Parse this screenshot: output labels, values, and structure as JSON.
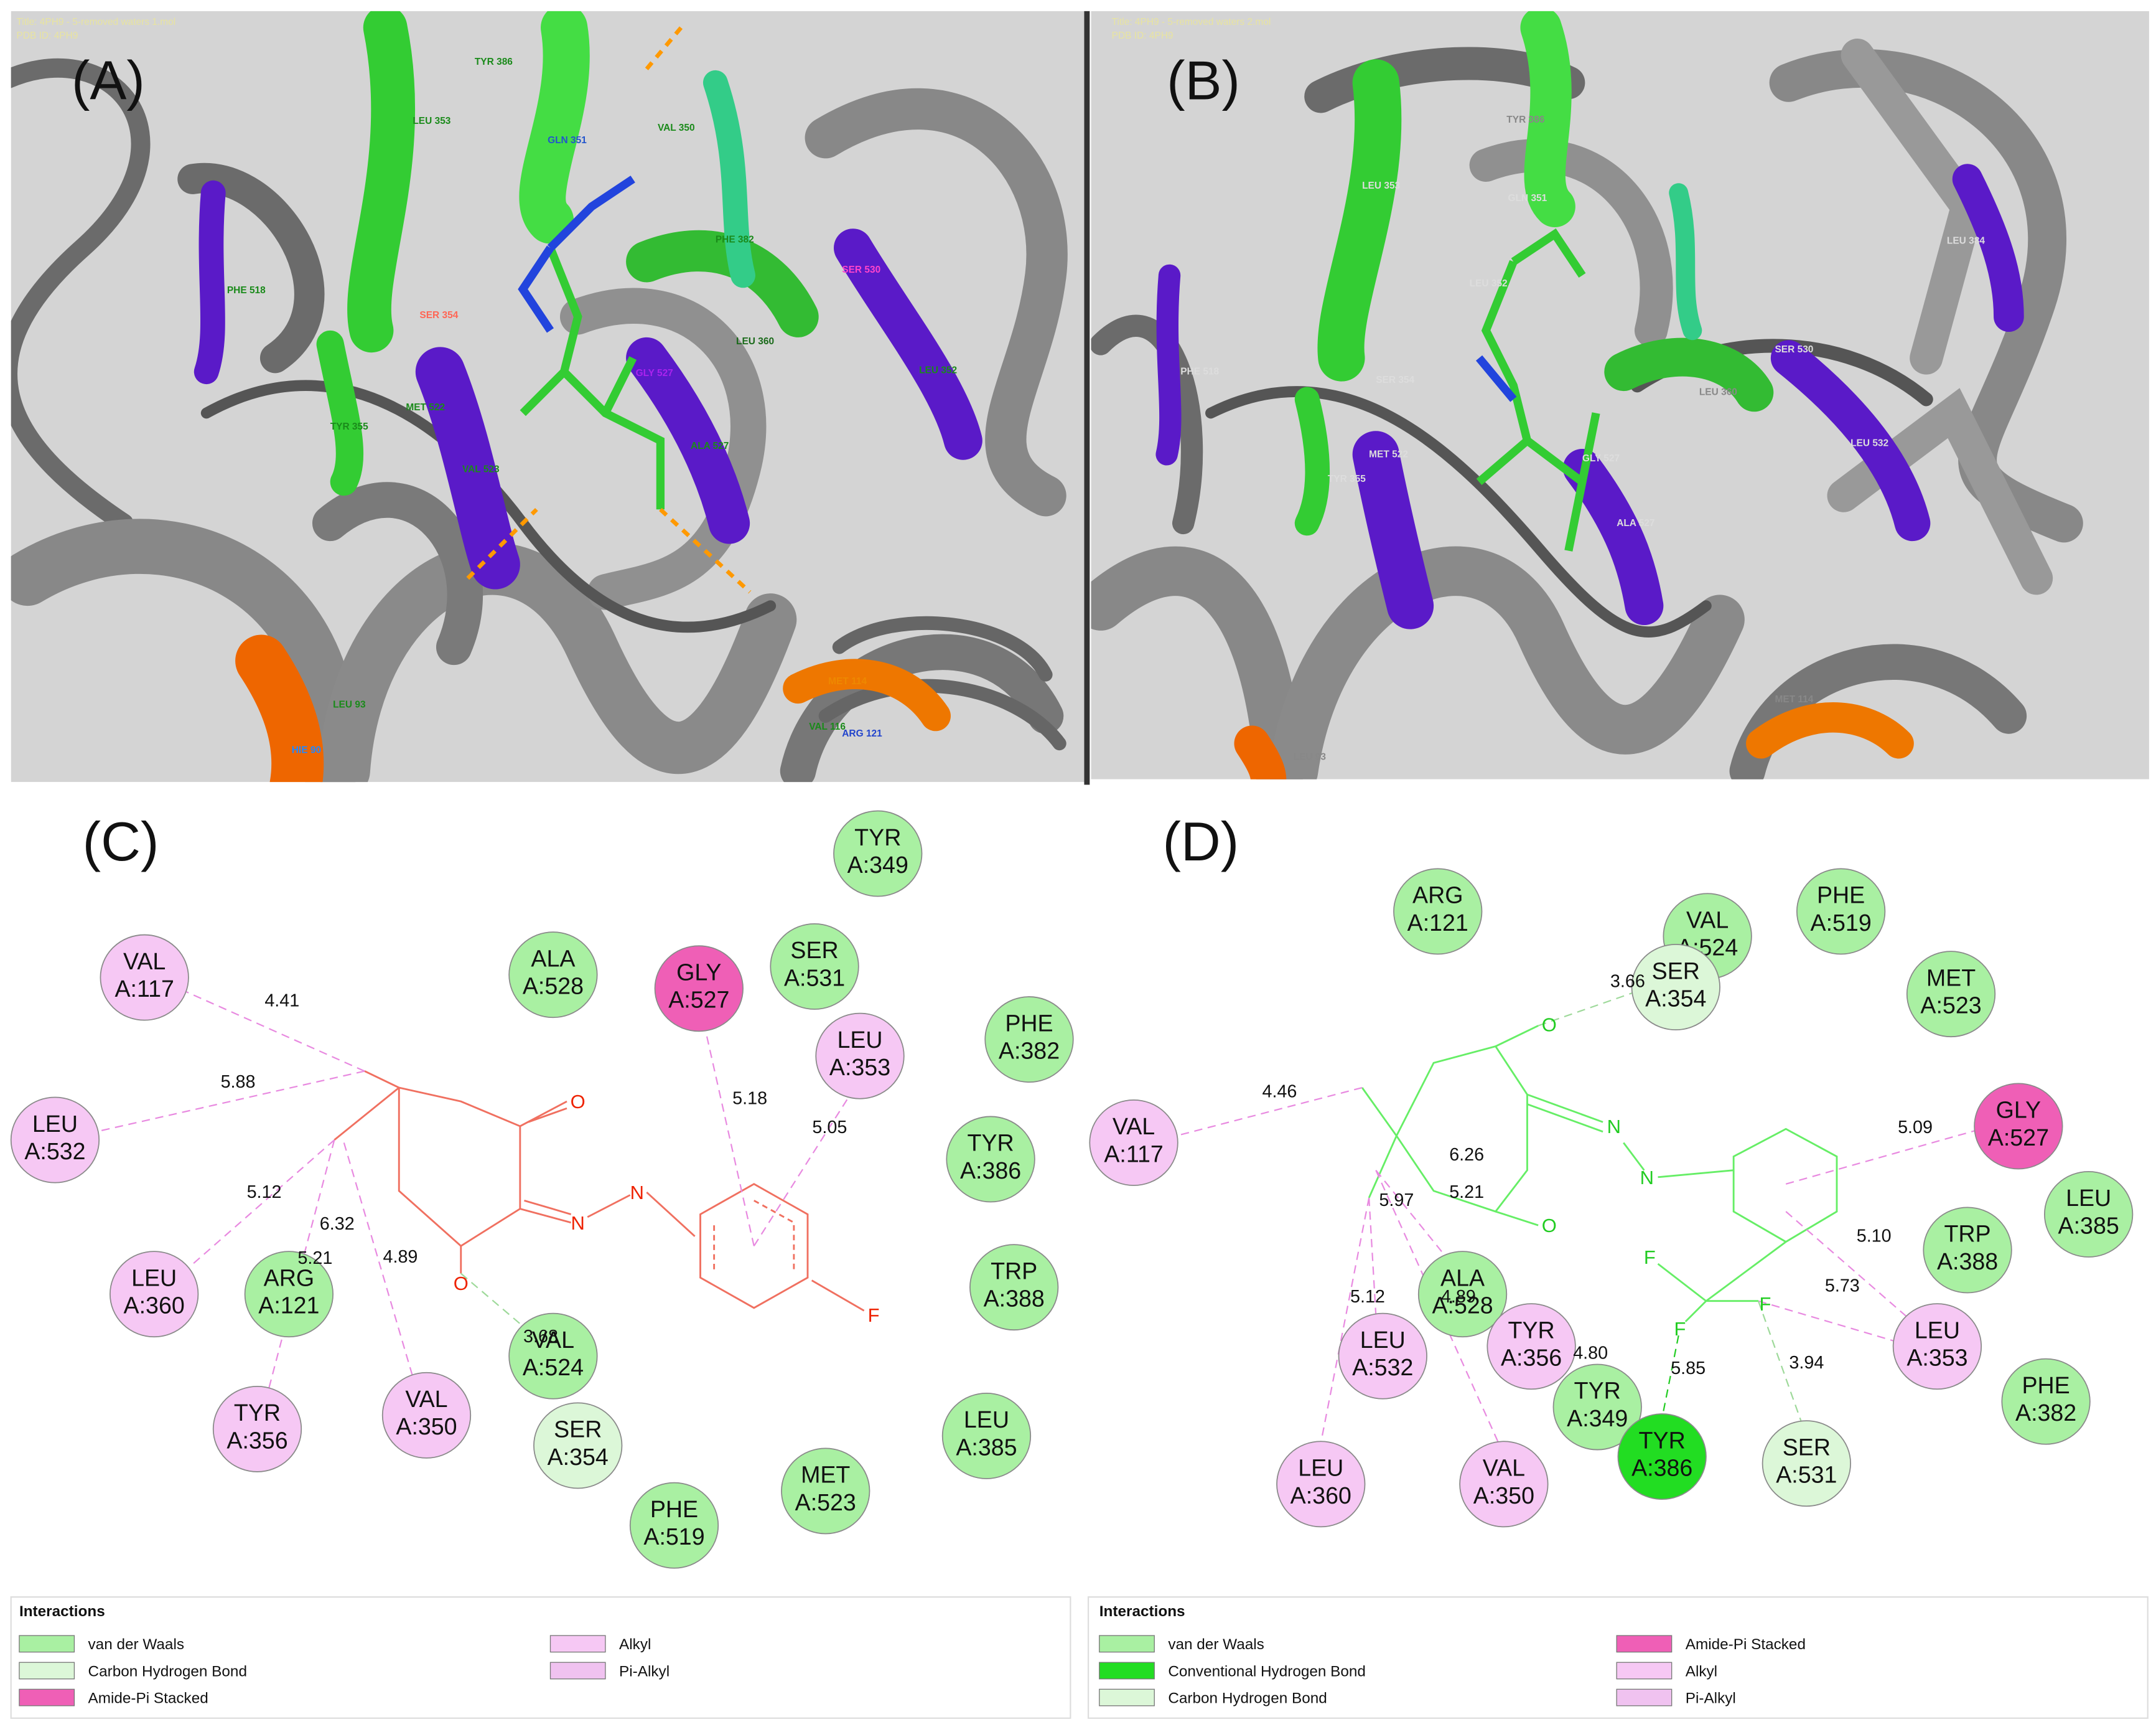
{
  "panel_a": {
    "label": "(A)",
    "title": "Title: 4PH9 - 5-removed waters 1.mol",
    "pdb": "PDB ID: 4PH9",
    "residues": [
      "TYR 386",
      "LEU 353",
      "GLN 351",
      "VAL 350",
      "PHE 518",
      "SER 354",
      "PHE 382",
      "SER 530",
      "LEU 360",
      "GLY 527",
      "LEU 352",
      "MET 522",
      "TYR 355",
      "VAL 523",
      "ALA 527",
      "LEU 93",
      "HIE 90",
      "MET 114",
      "ARG 121",
      "VAL 116"
    ]
  },
  "panel_b": {
    "label": "(B)",
    "title": "Title: 4PH9 - 5-removed waters 2.mol",
    "pdb": "PDB ID: 4PH9",
    "residues": [
      "TYR 386",
      "LEU 353",
      "GLN 351",
      "LEU 352",
      "PHE 518",
      "SER 354",
      "SER 530",
      "LEU 360",
      "GLY 527",
      "LEU 532",
      "MET 522",
      "TYR 355",
      "ALA 527",
      "LEU 93",
      "MET 114",
      "LEU 384"
    ]
  },
  "panel_c": {
    "label": "(C)",
    "residues": [
      {
        "name": "VAL",
        "id": "A:117",
        "color": "#f6c8f4"
      },
      {
        "name": "LEU",
        "id": "A:532",
        "color": "#f6c8f4"
      },
      {
        "name": "LEU",
        "id": "A:360",
        "color": "#f6c8f4"
      },
      {
        "name": "ARG",
        "id": "A:121",
        "color": "#a9f0a2"
      },
      {
        "name": "TYR",
        "id": "A:356",
        "color": "#f6c8f4"
      },
      {
        "name": "VAL",
        "id": "A:350",
        "color": "#f6c8f4"
      },
      {
        "name": "VAL",
        "id": "A:524",
        "color": "#a9f0a2"
      },
      {
        "name": "SER",
        "id": "A:354",
        "color": "#dcf7d8"
      },
      {
        "name": "ALA",
        "id": "A:528",
        "color": "#a9f0a2"
      },
      {
        "name": "GLY",
        "id": "A:527",
        "color": "#ef5fb6"
      },
      {
        "name": "SER",
        "id": "A:531",
        "color": "#a9f0a2"
      },
      {
        "name": "LEU",
        "id": "A:353",
        "color": "#f6c8f4"
      },
      {
        "name": "TYR",
        "id": "A:349",
        "color": "#a9f0a2"
      },
      {
        "name": "PHE",
        "id": "A:382",
        "color": "#a9f0a2"
      },
      {
        "name": "TYR",
        "id": "A:386",
        "color": "#a9f0a2"
      },
      {
        "name": "TRP",
        "id": "A:388",
        "color": "#a9f0a2"
      },
      {
        "name": "LEU",
        "id": "A:385",
        "color": "#a9f0a2"
      },
      {
        "name": "MET",
        "id": "A:523",
        "color": "#a9f0a2"
      },
      {
        "name": "PHE",
        "id": "A:519",
        "color": "#a9f0a2"
      }
    ],
    "distances": [
      "4.41",
      "5.88",
      "5.12",
      "6.32",
      "5.21",
      "4.89",
      "3.68",
      "5.18",
      "5.05"
    ],
    "atoms": [
      "O",
      "O",
      "N",
      "N",
      "F"
    ],
    "legend": {
      "title": "Interactions",
      "entries": [
        {
          "name": "van der Waals",
          "color": "#a9f0a2"
        },
        {
          "name": "Carbon Hydrogen Bond",
          "color": "#dcf7d8"
        },
        {
          "name": "Amide-Pi Stacked",
          "color": "#ef5fb6"
        },
        {
          "name": "Alkyl",
          "color": "#f6c8f4"
        },
        {
          "name": "Pi-Alkyl",
          "color": "#f0c2f0"
        }
      ]
    }
  },
  "panel_d": {
    "label": "(D)",
    "residues": [
      {
        "name": "ARG",
        "id": "A:121",
        "color": "#a9f0a2"
      },
      {
        "name": "VAL",
        "id": "A:524",
        "color": "#a9f0a2"
      },
      {
        "name": "SER",
        "id": "A:354",
        "color": "#dcf7d8"
      },
      {
        "name": "PHE",
        "id": "A:519",
        "color": "#a9f0a2"
      },
      {
        "name": "MET",
        "id": "A:523",
        "color": "#a9f0a2"
      },
      {
        "name": "VAL",
        "id": "A:117",
        "color": "#f6c8f4"
      },
      {
        "name": "GLY",
        "id": "A:527",
        "color": "#ef5fb6"
      },
      {
        "name": "LEU",
        "id": "A:385",
        "color": "#a9f0a2"
      },
      {
        "name": "TRP",
        "id": "A:388",
        "color": "#a9f0a2"
      },
      {
        "name": "LEU",
        "id": "A:353",
        "color": "#f6c8f4"
      },
      {
        "name": "PHE",
        "id": "A:382",
        "color": "#a9f0a2"
      },
      {
        "name": "ALA",
        "id": "A:528",
        "color": "#a9f0a2"
      },
      {
        "name": "TYR",
        "id": "A:356",
        "color": "#f6c8f4"
      },
      {
        "name": "LEU",
        "id": "A:532",
        "color": "#f6c8f4"
      },
      {
        "name": "TYR",
        "id": "A:349",
        "color": "#a9f0a2"
      },
      {
        "name": "TYR",
        "id": "A:386",
        "color": "#22dd22"
      },
      {
        "name": "SER",
        "id": "A:531",
        "color": "#dcf7d8"
      },
      {
        "name": "LEU",
        "id": "A:360",
        "color": "#f6c8f4"
      },
      {
        "name": "VAL",
        "id": "A:350",
        "color": "#f6c8f4"
      }
    ],
    "distances": [
      "3.66",
      "4.46",
      "5.09",
      "6.26",
      "5.97",
      "5.21",
      "5.10",
      "5.73",
      "5.12",
      "4.89",
      "4.80",
      "5.85",
      "3.94"
    ],
    "atoms": [
      "O",
      "N",
      "N",
      "O",
      "F",
      "F",
      "F"
    ],
    "legend": {
      "title": "Interactions",
      "entries": [
        {
          "name": "van der Waals",
          "color": "#a9f0a2"
        },
        {
          "name": "Conventional Hydrogen Bond",
          "color": "#22dd22"
        },
        {
          "name": "Carbon Hydrogen Bond",
          "color": "#dcf7d8"
        },
        {
          "name": "Amide-Pi Stacked",
          "color": "#ef5fb6"
        },
        {
          "name": "Alkyl",
          "color": "#f6c8f4"
        },
        {
          "name": "Pi-Alkyl",
          "color": "#f0c2f0"
        }
      ]
    }
  }
}
